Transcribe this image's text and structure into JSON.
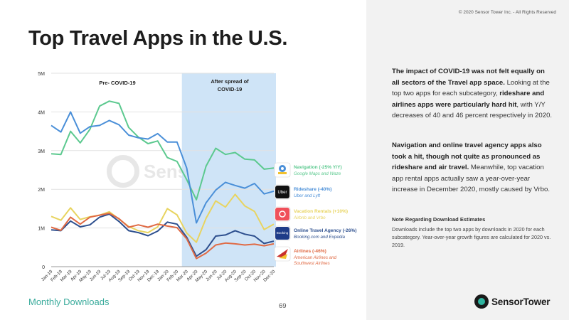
{
  "title": "Top Travel Apps in the U.S.",
  "copyright": "© 2020 Sensor Tower Inc. - All Rights Reserved",
  "footer": {
    "label": "Monthly Downloads",
    "page": "69",
    "logo_text": "SensorTower"
  },
  "watermark": "SensorTower",
  "panel": {
    "p1": [
      {
        "t": "The impact of COVID-19 was not felt equally on all sectors of the Travel app space.",
        "b": true
      },
      {
        "t": " Looking at the top two apps for each subcategory, ",
        "b": false
      },
      {
        "t": "rideshare and airlines apps were particularly hard hit",
        "b": true
      },
      {
        "t": ", with Y/Y decreases of 40 and 46 percent respectively in 2020.",
        "b": false
      }
    ],
    "p2": [
      {
        "t": "Navigation and online travel agency apps also took a hit, though not quite as pronounced as rideshare and air travel.",
        "b": true
      },
      {
        "t": " Meanwhile, top vacation app rental apps actually saw a year-over-year increase in December 2020, mostly caused by Vrbo.",
        "b": false
      }
    ],
    "note_title": "Note Regarding Download Estimates",
    "note": "Downloads include the top two apps by downloads in 2020 for each subcategory. Year-over-year growth figures are calculated for 2020 vs. 2019."
  },
  "chart_data": {
    "type": "line",
    "title": "",
    "xlabel": "",
    "ylabel": "",
    "ylim": [
      0,
      5000000
    ],
    "yticks": [
      "0",
      "1M",
      "2M",
      "3M",
      "4M",
      "5M"
    ],
    "grid": true,
    "x": [
      "Jan-19",
      "Feb-19",
      "Mar-19",
      "Apr-19",
      "May-19",
      "Jun-19",
      "Jul-19",
      "Aug-19",
      "Sep-19",
      "Oct-19",
      "Nov-19",
      "Dec-19",
      "Jan-20",
      "Feb-20",
      "Mar-20",
      "Apr-20",
      "May-20",
      "Jun-20",
      "Jul-20",
      "Aug-20",
      "Sep-20",
      "Oct-20",
      "Nov-20",
      "Dec-20"
    ],
    "annotations": {
      "pre": "Pre- COVID-19",
      "after_line1": "After spread of",
      "after_line2": "COVID-19",
      "shade_from": "Mar-20",
      "shade_to": "Dec-20"
    },
    "series": [
      {
        "name": "Navigation (-25% Y/Y)",
        "sub": "Google Maps and Waze",
        "color": "#5cc98f",
        "values": [
          2920000,
          2900000,
          3500000,
          3200000,
          3550000,
          4150000,
          4280000,
          4220000,
          3600000,
          3350000,
          3180000,
          3250000,
          2820000,
          2720000,
          2250000,
          1730000,
          2600000,
          3060000,
          2900000,
          2950000,
          2780000,
          2760000,
          2520000,
          2550000
        ]
      },
      {
        "name": "Rideshare (-40%)",
        "sub": "Uber and Lyft",
        "color": "#4a8fd8",
        "values": [
          3650000,
          3480000,
          4000000,
          3450000,
          3620000,
          3650000,
          3780000,
          3670000,
          3400000,
          3330000,
          3300000,
          3440000,
          3220000,
          3220000,
          2550000,
          1130000,
          1650000,
          1980000,
          2180000,
          2100000,
          2030000,
          2150000,
          1880000,
          1950000
        ]
      },
      {
        "name": "Vacation Rentals (+10%)",
        "sub": "Airbnb and Vrbo",
        "color": "#e8d460",
        "values": [
          1300000,
          1200000,
          1520000,
          1220000,
          1290000,
          1330000,
          1420000,
          1230000,
          1040000,
          930000,
          880000,
          1030000,
          1500000,
          1340000,
          870000,
          630000,
          1250000,
          1700000,
          1540000,
          1870000,
          1570000,
          1430000,
          960000,
          1100000
        ]
      },
      {
        "name": "Online Travel Agency (-26%)",
        "sub": "Booking.com and Expedia",
        "color": "#2d4f8e",
        "values": [
          950000,
          930000,
          1180000,
          1030000,
          1080000,
          1280000,
          1360000,
          1170000,
          930000,
          880000,
          800000,
          920000,
          1150000,
          1100000,
          760000,
          270000,
          440000,
          790000,
          820000,
          930000,
          840000,
          790000,
          600000,
          660000
        ]
      },
      {
        "name": "Airlines (-46%)",
        "sub": "American Airlines and Southwest Airlines",
        "color": "#e06a44",
        "values": [
          1020000,
          940000,
          1280000,
          1100000,
          1280000,
          1330000,
          1380000,
          1240000,
          1020000,
          1080000,
          1020000,
          1100000,
          1050000,
          1010000,
          720000,
          210000,
          350000,
          560000,
          610000,
          590000,
          560000,
          580000,
          540000,
          590000
        ]
      }
    ],
    "legend_icons": [
      "map-pin-icon",
      "uber-icon",
      "airbnb-icon",
      "booking-icon",
      "airline-icon"
    ],
    "legend_icon_texts": [
      "",
      "Uber",
      "",
      "Booking",
      ""
    ]
  }
}
